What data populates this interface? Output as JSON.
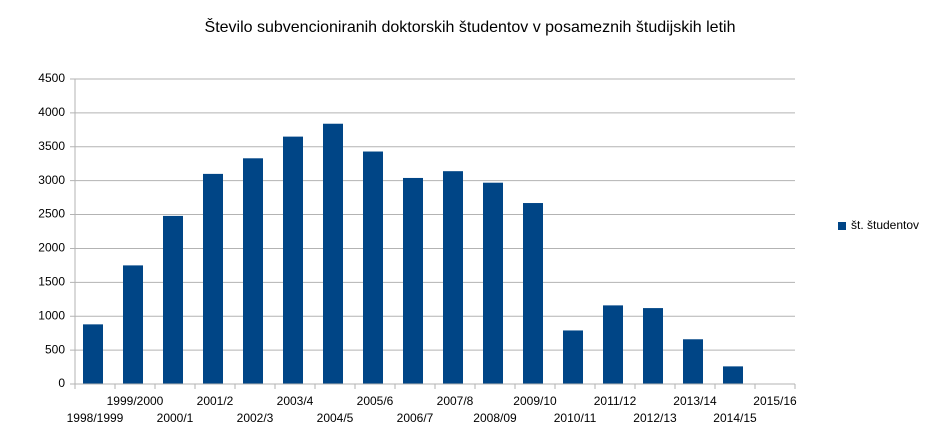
{
  "chart_data": {
    "type": "bar",
    "title": "Število subvencioniranih doktorskih študentov v posameznih študijskih letih",
    "categories": [
      "1998/1999",
      "1999/2000",
      "2000/1",
      "2001/2",
      "2002/3",
      "2003/4",
      "2004/5",
      "2005/6",
      "2006/7",
      "2007/8",
      "2008/09",
      "2009/10",
      "2010/11",
      "2011/12",
      "2012/13",
      "2013/14",
      "2014/15",
      "2015/16"
    ],
    "series": [
      {
        "name": "št. študentov",
        "color": "#004586",
        "values": [
          880,
          1750,
          2480,
          3100,
          3330,
          3650,
          3840,
          3430,
          3040,
          3140,
          2970,
          2670,
          790,
          1160,
          1120,
          660,
          260,
          null
        ]
      }
    ],
    "ylim": [
      0,
      4500
    ],
    "yticks": [
      0,
      500,
      1000,
      1500,
      2000,
      2500,
      3000,
      3500,
      4000,
      4500
    ],
    "grid": true,
    "legend": "right"
  }
}
